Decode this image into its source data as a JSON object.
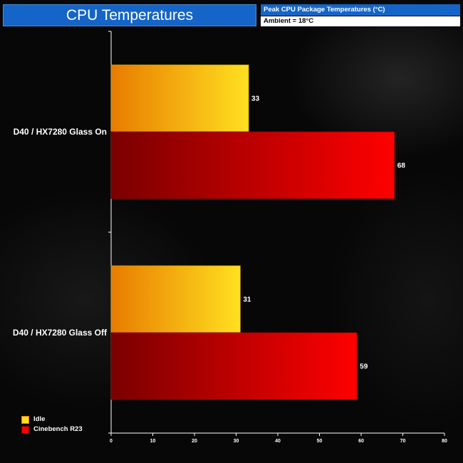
{
  "header": {
    "title": "CPU Temperatures",
    "subtitle": "Peak CPU Package Temperatures (°C)",
    "ambient": "Ambient = 18°C"
  },
  "colors": {
    "idle_start": "#e87c00",
    "idle_end": "#ffe020",
    "load_start": "#7a0000",
    "load_end": "#ff0000",
    "header_blue": "#1565c8"
  },
  "chart_data": {
    "type": "bar",
    "orientation": "horizontal",
    "categories": [
      "D40 / HX7280 Glass On",
      "D40 / HX7280 Glass Off"
    ],
    "series": [
      {
        "name": "Idle",
        "values": [
          33,
          31
        ]
      },
      {
        "name": "Cinebench R23",
        "values": [
          68,
          59
        ]
      }
    ],
    "xlim": [
      0,
      80
    ],
    "xticks": [
      0,
      10,
      20,
      30,
      40,
      50,
      60,
      70,
      80
    ],
    "data_labels": true,
    "legend_position": "bottom-left",
    "grid": false
  }
}
